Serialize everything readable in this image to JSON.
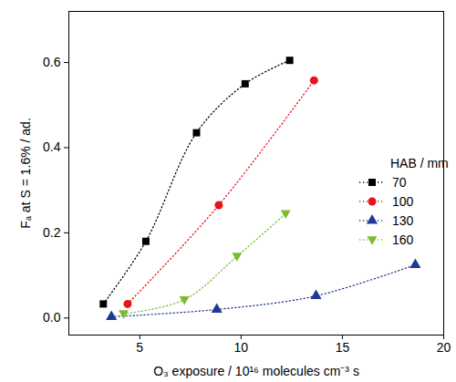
{
  "chart_data": {
    "type": "line",
    "x_label": "O₃ exposure / 10¹⁶ molecules cm⁻³ s",
    "y_label": "Fₐ at S = 1.6% / ad.",
    "legend_title": "HAB / mm",
    "legend": "right",
    "grid": false,
    "xlim": [
      1.5,
      20
    ],
    "xticks": [
      5,
      10,
      15,
      20
    ],
    "ylim": [
      -0.04,
      0.72
    ],
    "yticks": [
      {
        "value": 0,
        "label": "0.0"
      },
      {
        "value": 0.2,
        "label": "0.2"
      },
      {
        "value": 0.4,
        "label": "0.4"
      },
      {
        "value": 0.6,
        "label": "0.6"
      }
    ],
    "series": [
      {
        "name": "70",
        "color": "#000000",
        "marker": "square",
        "line_style": "dotted",
        "x": [
          3.2,
          5.3,
          7.8,
          10.2,
          12.4
        ],
        "values": [
          0.033,
          0.18,
          0.435,
          0.55,
          0.605
        ]
      },
      {
        "name": "100",
        "color": "#e8141c",
        "marker": "circle",
        "line_style": "dotted",
        "x": [
          4.4,
          8.9,
          13.6
        ],
        "values": [
          0.033,
          0.265,
          0.558
        ]
      },
      {
        "name": "130",
        "color": "#1f3a93",
        "marker": "triangle",
        "line_style": "dotted",
        "x": [
          3.6,
          8.8,
          13.7,
          18.6
        ],
        "values": [
          0.003,
          0.02,
          0.052,
          0.125
        ]
      },
      {
        "name": "160",
        "color": "#7dbb2f",
        "marker": "triangle-down",
        "line_style": "dotted",
        "x": [
          4.2,
          7.2,
          9.8,
          12.2
        ],
        "values": [
          0.01,
          0.043,
          0.145,
          0.245
        ]
      }
    ]
  }
}
